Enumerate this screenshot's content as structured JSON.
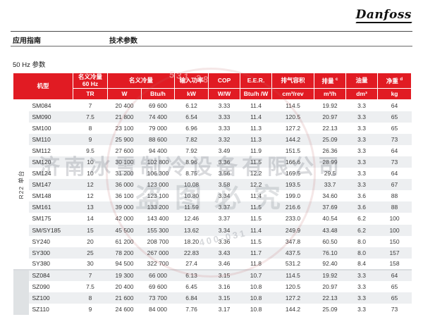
{
  "brand": {
    "logo_text": "Danfoss"
  },
  "doc_header": {
    "left": "应用指南",
    "center": "技术参数"
  },
  "section_title": "50 Hz 参数",
  "colors": {
    "danfoss_red": "#e11b23",
    "row_alt": "#edeff1",
    "group2_bg": "#dfe2e4"
  },
  "watermark": {
    "company": "济南冰雪制冷设备有限公司",
    "notice": "盗图必究",
    "number_fragment_top": "531-28",
    "number_fragment_bottom": "400-031"
  },
  "table": {
    "header": {
      "model": "机型",
      "cap60_line1": "名义冷量",
      "cap60_line2": "60 Hz",
      "cap": "名义冷量",
      "power": "输入功率",
      "cop": "COP",
      "eer": "E.E.R.",
      "disp_vol": "排气容积",
      "disp": "排量",
      "disp_sup": "c",
      "oil": "油量",
      "weight": "净重",
      "weight_sup": "d",
      "units": {
        "tr": "TR",
        "w": "W",
        "btuh": "Btu/h",
        "kw": "kW",
        "ww": "W/W",
        "btuhw": "Btu/h /W",
        "cm3rev": "cm³/rev",
        "m3h": "m³/h",
        "dm3": "dm³",
        "kg": "kg"
      }
    },
    "groups": [
      {
        "label": "R22 单台",
        "rows": [
          {
            "model": "SM084",
            "tr": "7",
            "w": "20 400",
            "btuh": "69 600",
            "kw": "6.12",
            "cop": "3.33",
            "eer": "11.4",
            "cm3rev": "114.5",
            "m3h": "19.92",
            "dm3": "3.3",
            "kg": "64"
          },
          {
            "model": "SM090",
            "tr": "7.5",
            "w": "21 800",
            "btuh": "74 400",
            "kw": "6.54",
            "cop": "3.33",
            "eer": "11.4",
            "cm3rev": "120.5",
            "m3h": "20.97",
            "dm3": "3.3",
            "kg": "65"
          },
          {
            "model": "SM100",
            "tr": "8",
            "w": "23 100",
            "btuh": "79 000",
            "kw": "6.96",
            "cop": "3.33",
            "eer": "11.3",
            "cm3rev": "127.2",
            "m3h": "22.13",
            "dm3": "3.3",
            "kg": "65"
          },
          {
            "model": "SM110",
            "tr": "9",
            "w": "25 900",
            "btuh": "88 600",
            "kw": "7.82",
            "cop": "3.32",
            "eer": "11.3",
            "cm3rev": "144.2",
            "m3h": "25.09",
            "dm3": "3.3",
            "kg": "73"
          },
          {
            "model": "SM112",
            "tr": "9.5",
            "w": "27 600",
            "btuh": "94 400",
            "kw": "7.92",
            "cop": "3.49",
            "eer": "11.9",
            "cm3rev": "151.5",
            "m3h": "26.36",
            "dm3": "3.3",
            "kg": "64"
          },
          {
            "model": "SM120",
            "tr": "10",
            "w": "30 100",
            "btuh": "102 800",
            "kw": "8.96",
            "cop": "3.36",
            "eer": "11.5",
            "cm3rev": "166.6",
            "m3h": "28.99",
            "dm3": "3.3",
            "kg": "73"
          },
          {
            "model": "SM124",
            "tr": "10",
            "w": "31 200",
            "btuh": "106 300",
            "kw": "8.75",
            "cop": "3.56",
            "eer": "12.2",
            "cm3rev": "169.5",
            "m3h": "29.5",
            "dm3": "3.3",
            "kg": "64"
          },
          {
            "model": "SM147",
            "tr": "12",
            "w": "36 000",
            "btuh": "123 000",
            "kw": "10.08",
            "cop": "3.58",
            "eer": "12.2",
            "cm3rev": "193.5",
            "m3h": "33.7",
            "dm3": "3.3",
            "kg": "67"
          },
          {
            "model": "SM148",
            "tr": "12",
            "w": "36 100",
            "btuh": "123 100",
            "kw": "10.80",
            "cop": "3.34",
            "eer": "11.4",
            "cm3rev": "199.0",
            "m3h": "34.60",
            "dm3": "3.6",
            "kg": "88"
          },
          {
            "model": "SM161",
            "tr": "13",
            "w": "39 000",
            "btuh": "133 200",
            "kw": "11.59",
            "cop": "3.37",
            "eer": "11.5",
            "cm3rev": "216.6",
            "m3h": "37.69",
            "dm3": "3.6",
            "kg": "88"
          },
          {
            "model": "SM175",
            "tr": "14",
            "w": "42 000",
            "btuh": "143 400",
            "kw": "12.46",
            "cop": "3.37",
            "eer": "11.5",
            "cm3rev": "233.0",
            "m3h": "40.54",
            "dm3": "6.2",
            "kg": "100"
          },
          {
            "model": "SM/SY185",
            "tr": "15",
            "w": "45 500",
            "btuh": "155 300",
            "kw": "13.62",
            "cop": "3.34",
            "eer": "11.4",
            "cm3rev": "249.9",
            "m3h": "43.48",
            "dm3": "6.2",
            "kg": "100"
          },
          {
            "model": "SY240",
            "tr": "20",
            "w": "61 200",
            "btuh": "208 700",
            "kw": "18.20",
            "cop": "3.36",
            "eer": "11.5",
            "cm3rev": "347.8",
            "m3h": "60.50",
            "dm3": "8.0",
            "kg": "150"
          },
          {
            "model": "SY300",
            "tr": "25",
            "w": "78 200",
            "btuh": "267 000",
            "kw": "22.83",
            "cop": "3.43",
            "eer": "11.7",
            "cm3rev": "437.5",
            "m3h": "76.10",
            "dm3": "8.0",
            "kg": "157"
          },
          {
            "model": "SY380",
            "tr": "30",
            "w": "94 500",
            "btuh": "322 700",
            "kw": "27.4",
            "cop": "3.46",
            "eer": "11.8",
            "cm3rev": "531.2",
            "m3h": "92.40",
            "dm3": "8.4",
            "kg": "158"
          }
        ]
      },
      {
        "label": "",
        "rows": [
          {
            "model": "SZ084",
            "tr": "7",
            "w": "19 300",
            "btuh": "66 000",
            "kw": "6.13",
            "cop": "3.15",
            "eer": "10.7",
            "cm3rev": "114.5",
            "m3h": "19.92",
            "dm3": "3.3",
            "kg": "64"
          },
          {
            "model": "SZ090",
            "tr": "7.5",
            "w": "20 400",
            "btuh": "69 600",
            "kw": "6.45",
            "cop": "3.16",
            "eer": "10.8",
            "cm3rev": "120.5",
            "m3h": "20.97",
            "dm3": "3.3",
            "kg": "65"
          },
          {
            "model": "SZ100",
            "tr": "8",
            "w": "21 600",
            "btuh": "73 700",
            "kw": "6.84",
            "cop": "3.15",
            "eer": "10.8",
            "cm3rev": "127.2",
            "m3h": "22.13",
            "dm3": "3.3",
            "kg": "65"
          },
          {
            "model": "SZ110",
            "tr": "9",
            "w": "24 600",
            "btuh": "84 000",
            "kw": "7.76",
            "cop": "3.17",
            "eer": "10.8",
            "cm3rev": "144.2",
            "m3h": "25.09",
            "dm3": "3.3",
            "kg": "73"
          }
        ]
      }
    ]
  }
}
